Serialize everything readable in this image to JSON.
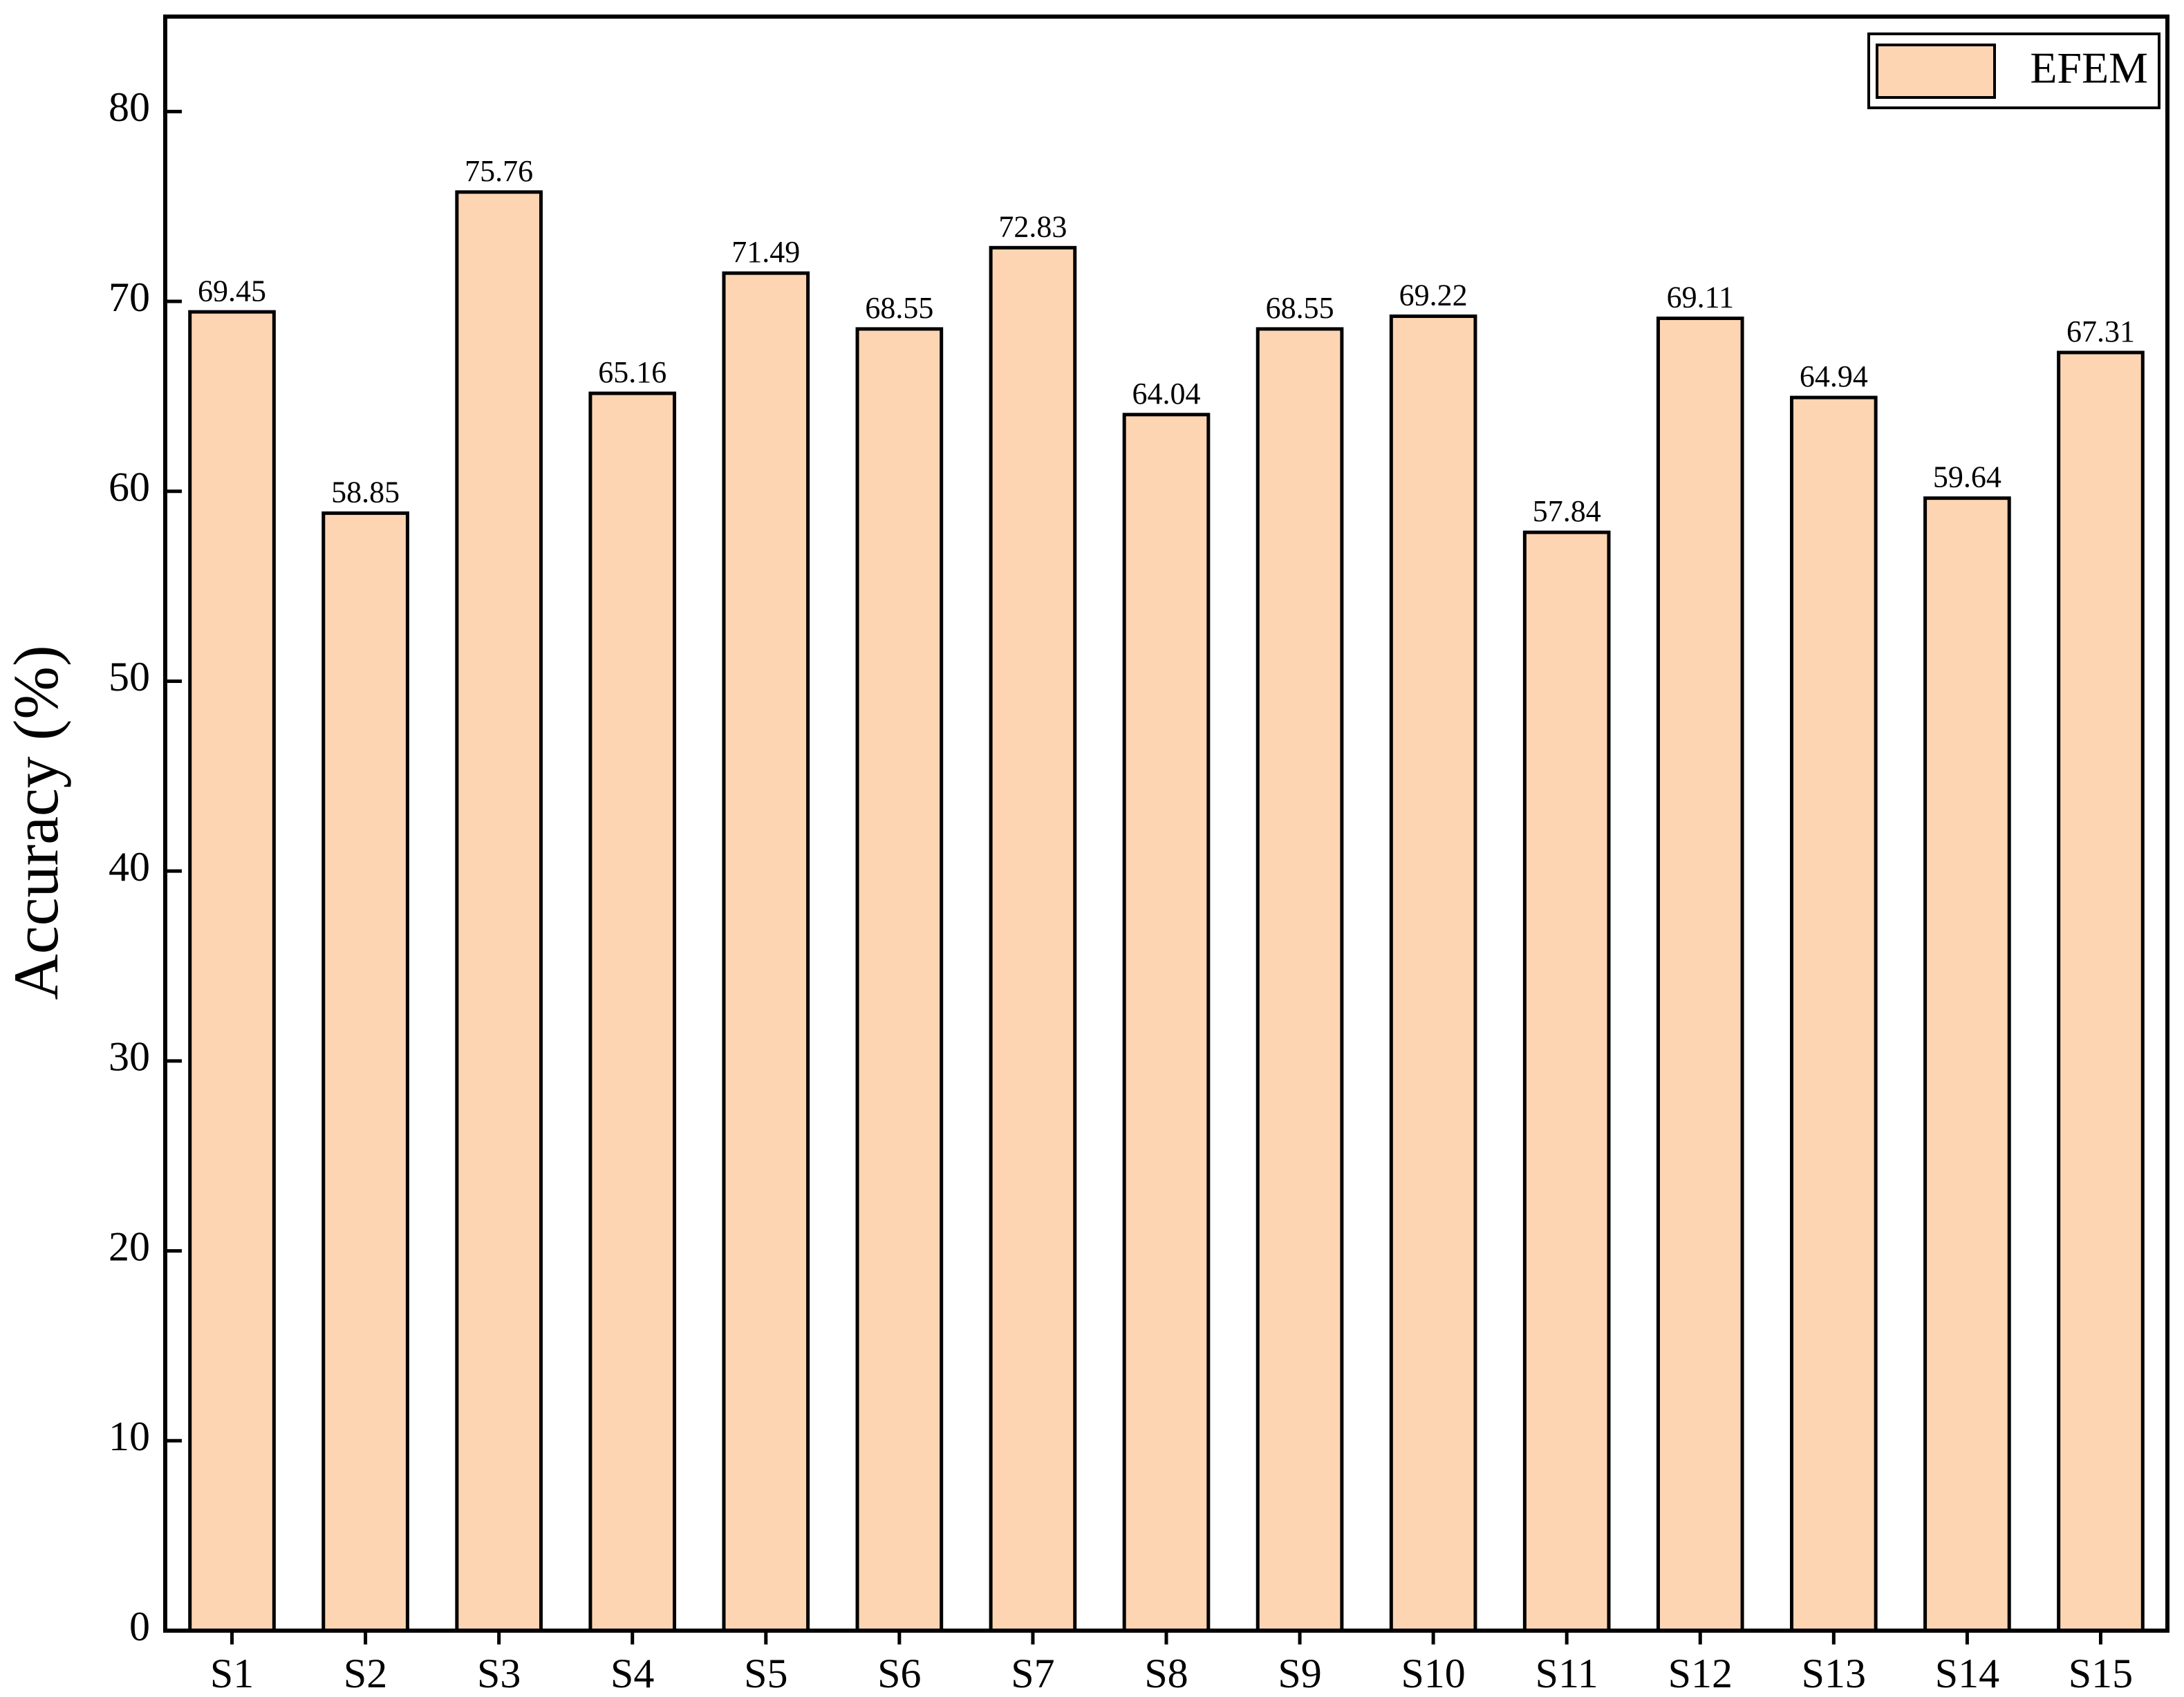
{
  "chart_data": {
    "type": "bar",
    "y_label": "Accuracy (%)",
    "categories": [
      "S1",
      "S2",
      "S3",
      "S4",
      "S5",
      "S6",
      "S7",
      "S8",
      "S9",
      "S10",
      "S11",
      "S12",
      "S13",
      "S14",
      "S15"
    ],
    "series": [
      {
        "name": "EFEM",
        "color": "#fdd5b3",
        "values": [
          69.45,
          58.85,
          75.76,
          65.16,
          71.49,
          68.55,
          72.83,
          64.04,
          68.55,
          69.22,
          57.84,
          69.11,
          64.94,
          59.64,
          67.31
        ]
      }
    ],
    "ylim": [
      0,
      85
    ],
    "yticks": [
      0,
      10,
      20,
      30,
      40,
      50,
      60,
      70,
      80
    ],
    "legend": "top-right",
    "grid": false
  }
}
